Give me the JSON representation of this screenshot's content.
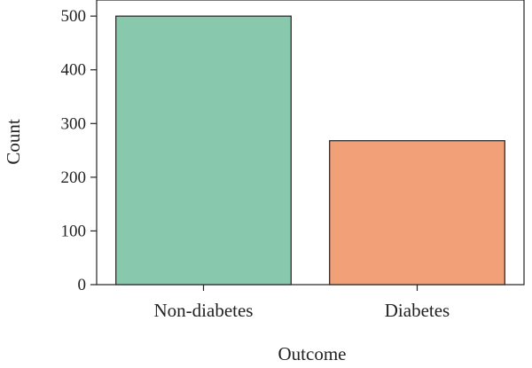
{
  "chart_data": {
    "type": "bar",
    "title": "",
    "xlabel": "Outcome",
    "ylabel": "Count",
    "categories": [
      "Non-diabetes",
      "Diabetes"
    ],
    "values": [
      500,
      268
    ],
    "ylim": [
      0,
      530
    ],
    "yticks": [
      "0",
      "100",
      "200",
      "300",
      "400",
      "500"
    ],
    "colors": [
      "#88c9ae",
      "#f2a078"
    ],
    "grid": false,
    "legend": "none"
  }
}
